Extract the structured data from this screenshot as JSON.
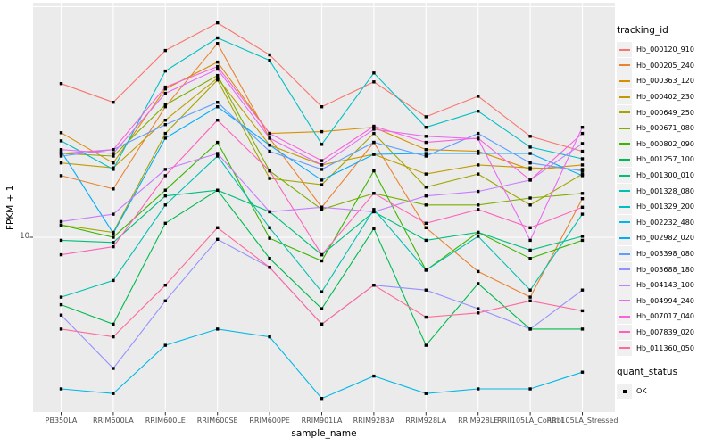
{
  "figure": {
    "y_axis": {
      "label": "FPKM + 1",
      "tick_label": "10"
    },
    "x_axis": {
      "label": "sample_name"
    },
    "legend": {
      "tracking_title": "tracking_id",
      "quant_title": "quant_status",
      "quant_ok_label": "OK"
    },
    "colors": {
      "panel_background": "#EBEBEB",
      "gridline": "#FFFFFF",
      "tick_mark": "#333333",
      "tick_label": "#4D4D4D",
      "point": "#000000"
    }
  },
  "chart_data": {
    "type": "line",
    "title": "",
    "xlabel": "sample_name",
    "ylabel": "FPKM + 1",
    "y_scale": "log10",
    "ylim": [
      1.8,
      104
    ],
    "y_major_gridlines": [
      10,
      100
    ],
    "y_tick_labels": [
      "10"
    ],
    "grid": "major",
    "legend_position": "right",
    "point_marker": {
      "shape": "filled-square",
      "color": "#000000",
      "meaning": "quant_status OK"
    },
    "x_categories": [
      "PB350LA",
      "RRIM600LA",
      "RRIM600LE",
      "RRIM600SE",
      "RRIM600PE",
      "RRIM901LA",
      "RRIM928BA",
      "RRIM928LA",
      "RRIM928LE",
      "RRII105LA_Control",
      "RRII105LA_Stressed"
    ],
    "series": [
      {
        "name": "Hb_000120_910",
        "color": "#F8766D",
        "values": [
          46.4,
          38.5,
          64.6,
          85.1,
          61.8,
          36.8,
          47.2,
          33.3,
          40.9,
          27.4,
          23.6
        ]
      },
      {
        "name": "Hb_000205_240",
        "color": "#EA8331",
        "values": [
          18.5,
          16.2,
          36.8,
          69.3,
          26.9,
          13.5,
          25.8,
          11.0,
          7.1,
          5.5,
          14.7
        ]
      },
      {
        "name": "Hb_000363_120",
        "color": "#D89000",
        "values": [
          28.4,
          21.0,
          44.0,
          57.5,
          28.2,
          28.7,
          30.0,
          24.0,
          23.6,
          19.7,
          20.6
        ]
      },
      {
        "name": "Hb_000402_230",
        "color": "#C09B00",
        "values": [
          21.0,
          20.0,
          32.2,
          49.0,
          25.1,
          20.6,
          22.9,
          18.8,
          20.6,
          20.0,
          19.7
        ]
      },
      {
        "name": "Hb_000649_250",
        "color": "#A3A500",
        "values": [
          11.3,
          10.5,
          28.2,
          48.1,
          18.0,
          16.9,
          28.2,
          16.5,
          18.8,
          13.8,
          18.8
        ]
      },
      {
        "name": "Hb_000671_080",
        "color": "#7CAE00",
        "values": [
          23.1,
          22.5,
          37.5,
          50.3,
          19.4,
          13.2,
          15.5,
          13.8,
          13.8,
          14.8,
          15.5
        ]
      },
      {
        "name": "Hb_000802_090",
        "color": "#39B600",
        "values": [
          11.3,
          10.0,
          16.0,
          25.8,
          9.9,
          7.9,
          19.4,
          7.2,
          10.5,
          8.1,
          9.7
        ]
      },
      {
        "name": "Hb_001257_100",
        "color": "#00BB4E",
        "values": [
          5.1,
          4.2,
          11.5,
          16.0,
          8.1,
          4.9,
          10.9,
          3.4,
          6.3,
          4.0,
          4.0
        ]
      },
      {
        "name": "Hb_001300_010",
        "color": "#00BF7D",
        "values": [
          9.7,
          9.5,
          15.1,
          16.0,
          12.9,
          8.4,
          12.9,
          9.7,
          10.5,
          8.8,
          10.1
        ]
      },
      {
        "name": "Hb_001328_080",
        "color": "#00C0AF",
        "values": [
          5.5,
          6.5,
          13.8,
          22.5,
          11.0,
          5.8,
          13.2,
          7.2,
          10.1,
          5.9,
          12.6
        ]
      },
      {
        "name": "Hb_001329_200",
        "color": "#00BFC4",
        "values": [
          26.2,
          19.7,
          52.6,
          73.2,
          58.5,
          25.3,
          51.6,
          30.0,
          35.2,
          24.6,
          21.9
        ]
      },
      {
        "name": "Hb_002232_480",
        "color": "#00B8E7",
        "values": [
          2.2,
          2.1,
          3.4,
          4.0,
          3.7,
          2.0,
          2.5,
          2.1,
          2.2,
          2.2,
          2.6
        ]
      },
      {
        "name": "Hb_002982_020",
        "color": "#00ACFC",
        "values": [
          23.6,
          10.4,
          26.9,
          36.8,
          25.1,
          17.7,
          22.9,
          23.1,
          23.1,
          23.1,
          18.5
        ]
      },
      {
        "name": "Hb_003398_080",
        "color": "#619CFF",
        "values": [
          22.5,
          24.0,
          30.8,
          38.5,
          23.6,
          19.7,
          25.8,
          22.5,
          28.2,
          21.0,
          19.4
        ]
      },
      {
        "name": "Hb_003688_180",
        "color": "#9590FF",
        "values": [
          4.6,
          2.7,
          5.3,
          9.8,
          7.4,
          4.2,
          6.2,
          5.9,
          4.9,
          4.0,
          5.9
        ]
      },
      {
        "name": "Hb_004143_100",
        "color": "#C77CFF",
        "values": [
          11.7,
          12.6,
          19.7,
          23.1,
          12.9,
          13.5,
          12.9,
          15.1,
          15.8,
          17.7,
          25.5
        ]
      },
      {
        "name": "Hb_004994_240",
        "color": "#E76BF3",
        "values": [
          24.0,
          23.1,
          42.1,
          53.6,
          26.9,
          20.6,
          29.4,
          27.4,
          26.7,
          9.7,
          30.0
        ]
      },
      {
        "name": "Hb_007017_040",
        "color": "#FA62DB",
        "values": [
          23.1,
          24.0,
          44.8,
          55.0,
          28.2,
          21.5,
          30.3,
          25.8,
          26.9,
          17.7,
          28.2
        ]
      },
      {
        "name": "Hb_007839_020",
        "color": "#FF62BC",
        "values": [
          8.4,
          9.1,
          18.5,
          32.2,
          19.4,
          8.4,
          15.5,
          11.5,
          13.2,
          11.0,
          13.5
        ]
      },
      {
        "name": "Hb_011360_050",
        "color": "#FF6A98",
        "values": [
          4.0,
          3.7,
          6.2,
          11.0,
          7.4,
          4.2,
          6.2,
          4.5,
          4.7,
          5.3,
          4.8
        ]
      }
    ]
  }
}
